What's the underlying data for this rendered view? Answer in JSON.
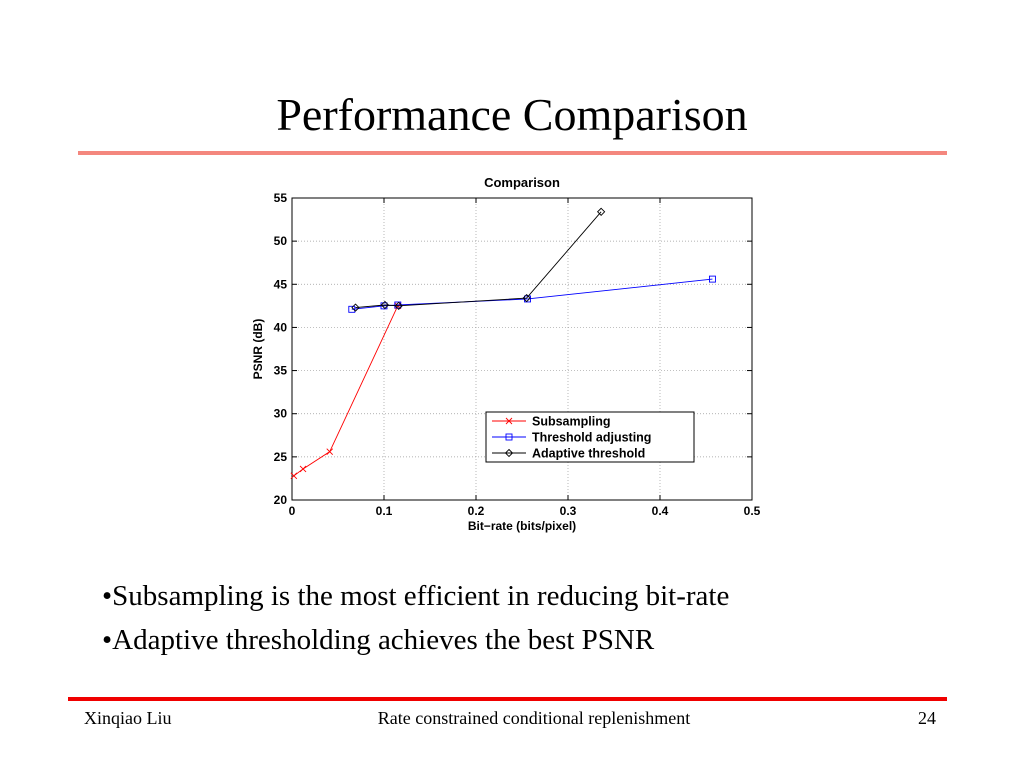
{
  "slide": {
    "title": "Performance Comparison",
    "bullets": [
      "•Subsampling is the most efficient in reducing bit-rate",
      "•Adaptive thresholding achieves the best PSNR"
    ],
    "footer": {
      "author": "Xinqiao Liu",
      "subject": "Rate constrained conditional replenishment",
      "page": "24"
    }
  },
  "chart_data": {
    "type": "line",
    "title": "Comparison",
    "xlabel": "Bit−rate (bits/pixel)",
    "ylabel": "PSNR (dB)",
    "xlim": [
      0,
      0.5
    ],
    "ylim": [
      20,
      55
    ],
    "xticks": [
      "0",
      "0.1",
      "0.2",
      "0.3",
      "0.4",
      "0.5"
    ],
    "yticks": [
      "20",
      "25",
      "30",
      "35",
      "40",
      "45",
      "50",
      "55"
    ],
    "grid": true,
    "legend_position": "lower-right",
    "series": [
      {
        "name": "Subsampling",
        "color": "#ff0000",
        "marker": "x",
        "x": [
          0.002,
          0.012,
          0.041,
          0.115
        ],
        "y": [
          22.8,
          23.6,
          25.6,
          42.5
        ]
      },
      {
        "name": "Threshold adjusting",
        "color": "#0000ff",
        "marker": "square",
        "x": [
          0.065,
          0.1,
          0.115,
          0.256,
          0.457
        ],
        "y": [
          42.1,
          42.5,
          42.6,
          43.3,
          45.6
        ]
      },
      {
        "name": "Adaptive threshold",
        "color": "#000000",
        "marker": "diamond",
        "x": [
          0.069,
          0.101,
          0.116,
          0.255,
          0.336
        ],
        "y": [
          42.3,
          42.6,
          42.5,
          43.4,
          53.4
        ]
      }
    ]
  }
}
